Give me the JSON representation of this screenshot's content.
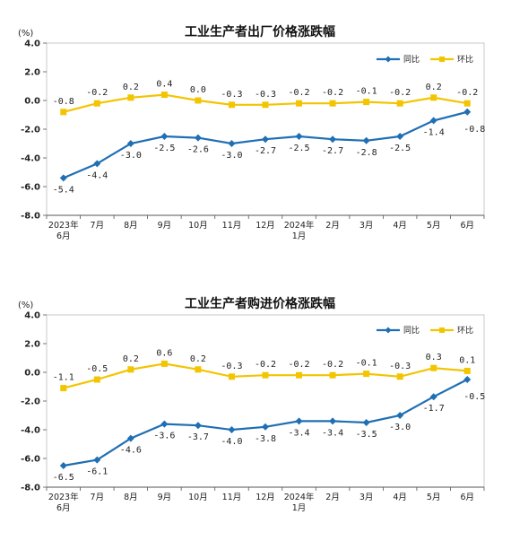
{
  "colors": {
    "yoy": "#1f6fb4",
    "mom": "#f3c400",
    "axis": "#555555"
  },
  "chart_data": [
    {
      "type": "line",
      "title": "工业生产者出厂价格涨跌幅",
      "unit": "(%)",
      "ylim": [
        -8.0,
        4.0
      ],
      "yticks": [
        "4.0",
        "2.0",
        "0.0",
        "-2.0",
        "-4.0",
        "-6.0",
        "-8.0"
      ],
      "ytick_values": [
        4,
        2,
        0,
        -2,
        -4,
        -6,
        -8
      ],
      "categories": [
        "2023年\n6月",
        "7月",
        "8月",
        "9月",
        "10月",
        "11月",
        "12月",
        "2024年\n1月",
        "2月",
        "3月",
        "4月",
        "5月",
        "6月"
      ],
      "legend": [
        "同比",
        "环比"
      ],
      "legend_position": "top-right",
      "series": [
        {
          "name": "同比",
          "values": [
            -5.4,
            -4.4,
            -3.0,
            -2.5,
            -2.6,
            -3.0,
            -2.7,
            -2.5,
            -2.7,
            -2.8,
            -2.5,
            -1.4,
            -0.8
          ],
          "labels": [
            "-5.4",
            "-4.4",
            "-3.0",
            "-2.5",
            "-2.6",
            "-3.0",
            "-2.7",
            "-2.5",
            "-2.7",
            "-2.8",
            "-2.5",
            "-1.4",
            "-0.8"
          ]
        },
        {
          "name": "环比",
          "values": [
            -0.8,
            -0.2,
            0.2,
            0.4,
            0.0,
            -0.3,
            -0.3,
            -0.2,
            -0.2,
            -0.1,
            -0.2,
            0.2,
            -0.2
          ],
          "labels": [
            "-0.8",
            "-0.2",
            "0.2",
            "0.4",
            "0.0",
            "-0.3",
            "-0.3",
            "-0.2",
            "-0.2",
            "-0.1",
            "-0.2",
            "0.2",
            "-0.2"
          ]
        }
      ]
    },
    {
      "type": "line",
      "title": "工业生产者购进价格涨跌幅",
      "unit": "(%)",
      "ylim": [
        -8.0,
        4.0
      ],
      "yticks": [
        "4.0",
        "2.0",
        "0.0",
        "-2.0",
        "-4.0",
        "-6.0",
        "-8.0"
      ],
      "ytick_values": [
        4,
        2,
        0,
        -2,
        -4,
        -6,
        -8
      ],
      "categories": [
        "2023年\n6月",
        "7月",
        "8月",
        "9月",
        "10月",
        "11月",
        "12月",
        "2024年\n1月",
        "2月",
        "3月",
        "4月",
        "5月",
        "6月"
      ],
      "legend": [
        "同比",
        "环比"
      ],
      "legend_position": "top-right",
      "series": [
        {
          "name": "同比",
          "values": [
            -6.5,
            -6.1,
            -4.6,
            -3.6,
            -3.7,
            -4.0,
            -3.8,
            -3.4,
            -3.4,
            -3.5,
            -3.0,
            -1.7,
            -0.5
          ],
          "labels": [
            "-6.5",
            "-6.1",
            "-4.6",
            "-3.6",
            "-3.7",
            "-4.0",
            "-3.8",
            "-3.4",
            "-3.4",
            "-3.5",
            "-3.0",
            "-1.7",
            "-0.5"
          ]
        },
        {
          "name": "环比",
          "values": [
            -1.1,
            -0.5,
            0.2,
            0.6,
            0.2,
            -0.3,
            -0.2,
            -0.2,
            -0.2,
            -0.1,
            -0.3,
            0.3,
            0.1
          ],
          "labels": [
            "-1.1",
            "-0.5",
            "0.2",
            "0.6",
            "0.2",
            "-0.3",
            "-0.2",
            "-0.2",
            "-0.2",
            "-0.1",
            "-0.3",
            "0.3",
            "0.1"
          ]
        }
      ]
    }
  ]
}
